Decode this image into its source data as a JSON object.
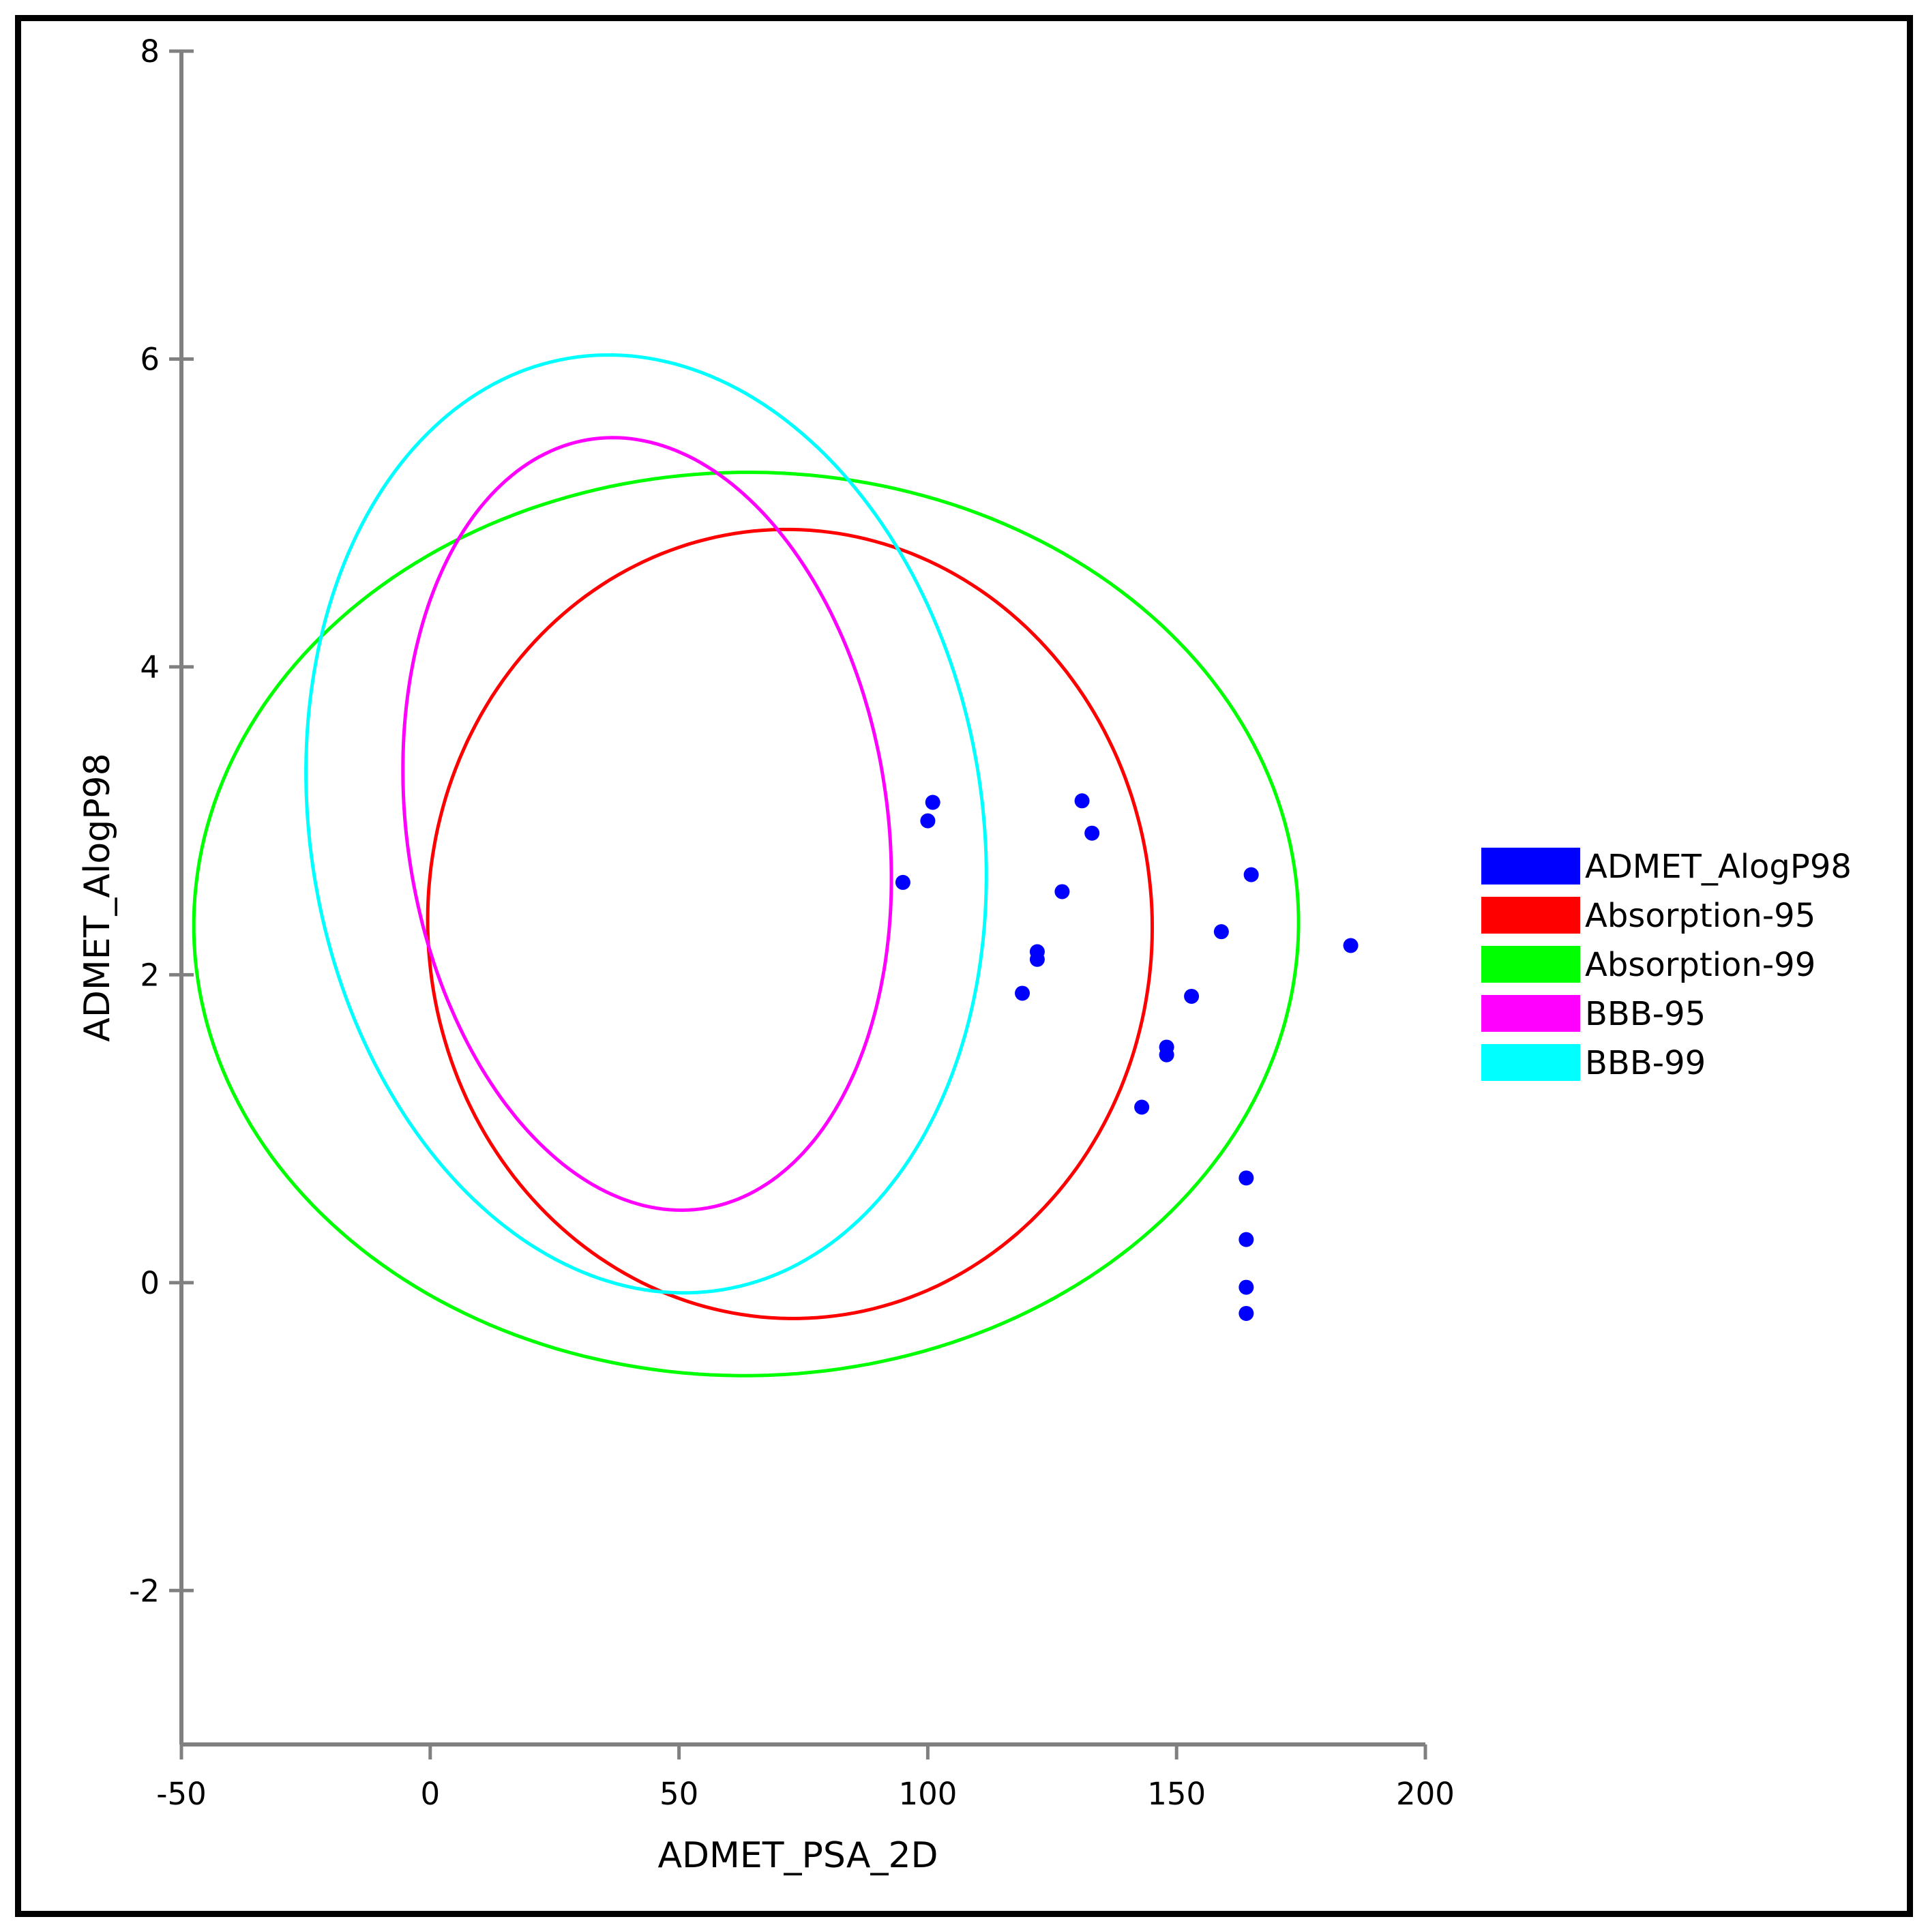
{
  "chart_data": {
    "type": "scatter",
    "title": "",
    "xlabel": "ADMET_PSA_2D",
    "ylabel": "ADMET_AlogP98",
    "xlim": [
      -50,
      200
    ],
    "ylim": [
      -3,
      8
    ],
    "xticks": [
      -50,
      0,
      50,
      100,
      150,
      200
    ],
    "yticks": [
      -2,
      0,
      2,
      4,
      6,
      8
    ],
    "grid": false,
    "legend_position": "right",
    "points_series": {
      "name": "ADMET_AlogP98",
      "color": "#0000ff",
      "points": [
        {
          "x": 95,
          "y": 2.6
        },
        {
          "x": 100,
          "y": 3.0
        },
        {
          "x": 101,
          "y": 3.12
        },
        {
          "x": 119,
          "y": 1.88
        },
        {
          "x": 122,
          "y": 2.1
        },
        {
          "x": 122,
          "y": 2.15
        },
        {
          "x": 127,
          "y": 2.54
        },
        {
          "x": 131,
          "y": 3.13
        },
        {
          "x": 133,
          "y": 2.92
        },
        {
          "x": 143,
          "y": 1.14
        },
        {
          "x": 148,
          "y": 1.48
        },
        {
          "x": 148,
          "y": 1.53
        },
        {
          "x": 153,
          "y": 1.86
        },
        {
          "x": 159,
          "y": 2.28
        },
        {
          "x": 164,
          "y": 0.68
        },
        {
          "x": 164,
          "y": 0.28
        },
        {
          "x": 164,
          "y": -0.03
        },
        {
          "x": 164,
          "y": -0.2
        },
        {
          "x": 165,
          "y": 2.65
        },
        {
          "x": 185,
          "y": 2.19
        }
      ]
    },
    "ellipses": [
      {
        "name": "Absorption-95",
        "color": "#ff0000",
        "cx": 72.3,
        "cy": 2.33,
        "rx": 93.3,
        "ry": 2.0,
        "angle_deg": -88.95
      },
      {
        "name": "Absorption-99",
        "color": "#00ff00",
        "cx": 63.5,
        "cy": 2.33,
        "rx": 106.8,
        "ry": 3.05,
        "angle_deg": -87.6
      },
      {
        "name": "BBB-95",
        "color": "#ff00ff",
        "cx": 43.6,
        "cy": 2.98,
        "rx": 91.7,
        "ry": 1.33,
        "angle_deg": -84.0
      },
      {
        "name": "BBB-99",
        "color": "#00ffff",
        "cx": 43.4,
        "cy": 2.98,
        "rx": 111.3,
        "ry": 1.86,
        "angle_deg": -83.8
      }
    ],
    "legend": [
      {
        "label": "ADMET_AlogP98",
        "color": "#0000ff"
      },
      {
        "label": "Absorption-95",
        "color": "#ff0000"
      },
      {
        "label": "Absorption-99",
        "color": "#00ff00"
      },
      {
        "label": "BBB-95",
        "color": "#ff00ff"
      },
      {
        "label": "BBB-99",
        "color": "#00ffff"
      }
    ]
  }
}
